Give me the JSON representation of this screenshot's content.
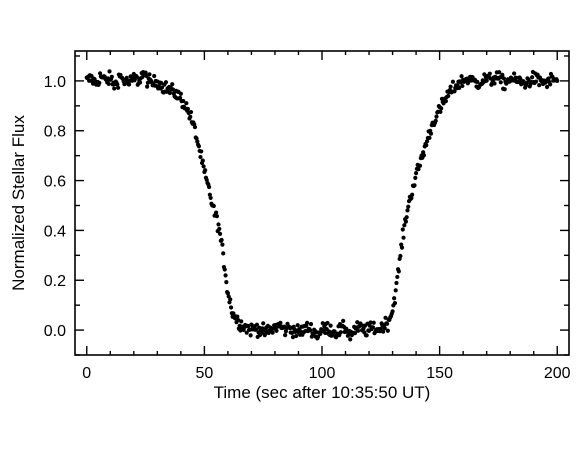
{
  "chart_data": {
    "type": "scatter",
    "xlabel": "Time (sec after 10:35:50 UT)",
    "ylabel": "Normalized Stellar Flux",
    "xlim": [
      -5,
      205
    ],
    "ylim": [
      -0.1,
      1.12
    ],
    "xticks": [
      0,
      50,
      100,
      150,
      200
    ],
    "yticks": [
      0.0,
      0.2,
      0.4,
      0.6,
      0.8,
      1.0
    ],
    "xtick_labels": [
      "0",
      "50",
      "100",
      "150",
      "200"
    ],
    "ytick_labels": [
      "0.0",
      "0.2",
      "0.4",
      "0.6",
      "0.8",
      "1.0"
    ],
    "grid": false,
    "marker_color": "#000000",
    "series": [
      {
        "x": [
          0,
          2,
          4,
          6,
          8,
          10,
          12,
          14,
          16,
          18,
          20,
          22,
          24,
          26,
          28,
          30,
          32,
          34,
          36,
          38,
          40,
          42,
          44,
          46,
          48,
          50,
          52,
          54,
          56,
          58,
          60,
          62,
          64,
          66,
          68,
          70,
          72,
          74,
          76,
          78,
          80,
          82,
          84,
          86,
          88,
          90,
          92,
          94,
          96,
          98,
          100,
          102,
          104,
          106,
          108,
          110,
          112,
          114,
          116,
          118,
          120,
          122,
          124,
          126,
          128,
          130,
          132,
          134,
          136,
          138,
          140,
          142,
          144,
          146,
          148,
          150,
          152,
          154,
          156,
          158,
          160,
          162,
          164,
          166,
          168,
          170,
          172,
          174,
          176,
          178,
          180,
          182,
          184,
          186,
          188,
          190,
          192,
          194,
          196,
          198,
          200
        ],
        "y": [
          1.0,
          1.01,
          0.99,
          1.02,
          1.0,
          1.01,
          0.98,
          1.02,
          1.0,
          0.99,
          1.01,
          1.0,
          1.03,
          1.0,
          0.99,
          1.0,
          0.98,
          0.97,
          0.96,
          0.95,
          0.93,
          0.9,
          0.86,
          0.8,
          0.72,
          0.63,
          0.56,
          0.48,
          0.42,
          0.3,
          0.15,
          0.07,
          0.04,
          0.02,
          0.01,
          0.0,
          0.01,
          0.0,
          -0.01,
          0.0,
          0.01,
          0.02,
          0.0,
          0.01,
          0.0,
          -0.01,
          0.0,
          0.01,
          0.0,
          -0.02,
          0.0,
          0.01,
          0.0,
          -0.01,
          0.0,
          0.01,
          -0.02,
          0.0,
          0.01,
          0.0,
          0.0,
          0.01,
          0.0,
          0.02,
          0.03,
          0.08,
          0.2,
          0.35,
          0.47,
          0.55,
          0.62,
          0.68,
          0.74,
          0.8,
          0.85,
          0.88,
          0.92,
          0.95,
          0.97,
          0.99,
          1.0,
          1.01,
          1.0,
          0.99,
          1.0,
          1.01,
          1.0,
          1.02,
          1.0,
          0.99,
          1.01,
          1.0,
          1.0,
          0.99,
          1.0,
          1.01,
          1.0,
          1.0,
          0.99,
          1.01,
          1.0
        ]
      }
    ]
  }
}
